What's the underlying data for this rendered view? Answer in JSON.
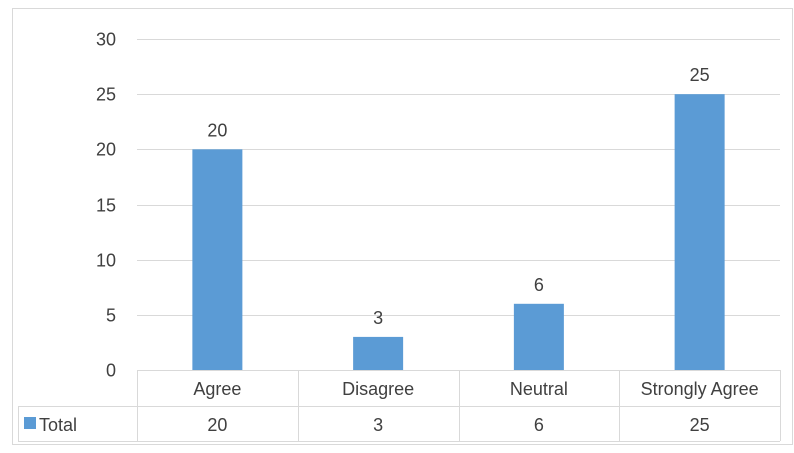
{
  "chart_data": {
    "type": "bar",
    "categories": [
      "Agree",
      "Disagree",
      "Neutral",
      "Strongly Agree"
    ],
    "series": [
      {
        "name": "Total",
        "values": [
          20,
          3,
          6,
          25
        ]
      }
    ],
    "title": "",
    "xlabel": "",
    "ylabel": "",
    "ylim": [
      0,
      30
    ],
    "yticks": [
      0,
      5,
      10,
      15,
      20,
      25,
      30
    ],
    "grid": true,
    "legend": "data-table",
    "data_labels": true,
    "data_table": true,
    "colors": {
      "bar": "#5B9BD5",
      "grid": "#D9D9D9",
      "text": "#404040"
    }
  }
}
